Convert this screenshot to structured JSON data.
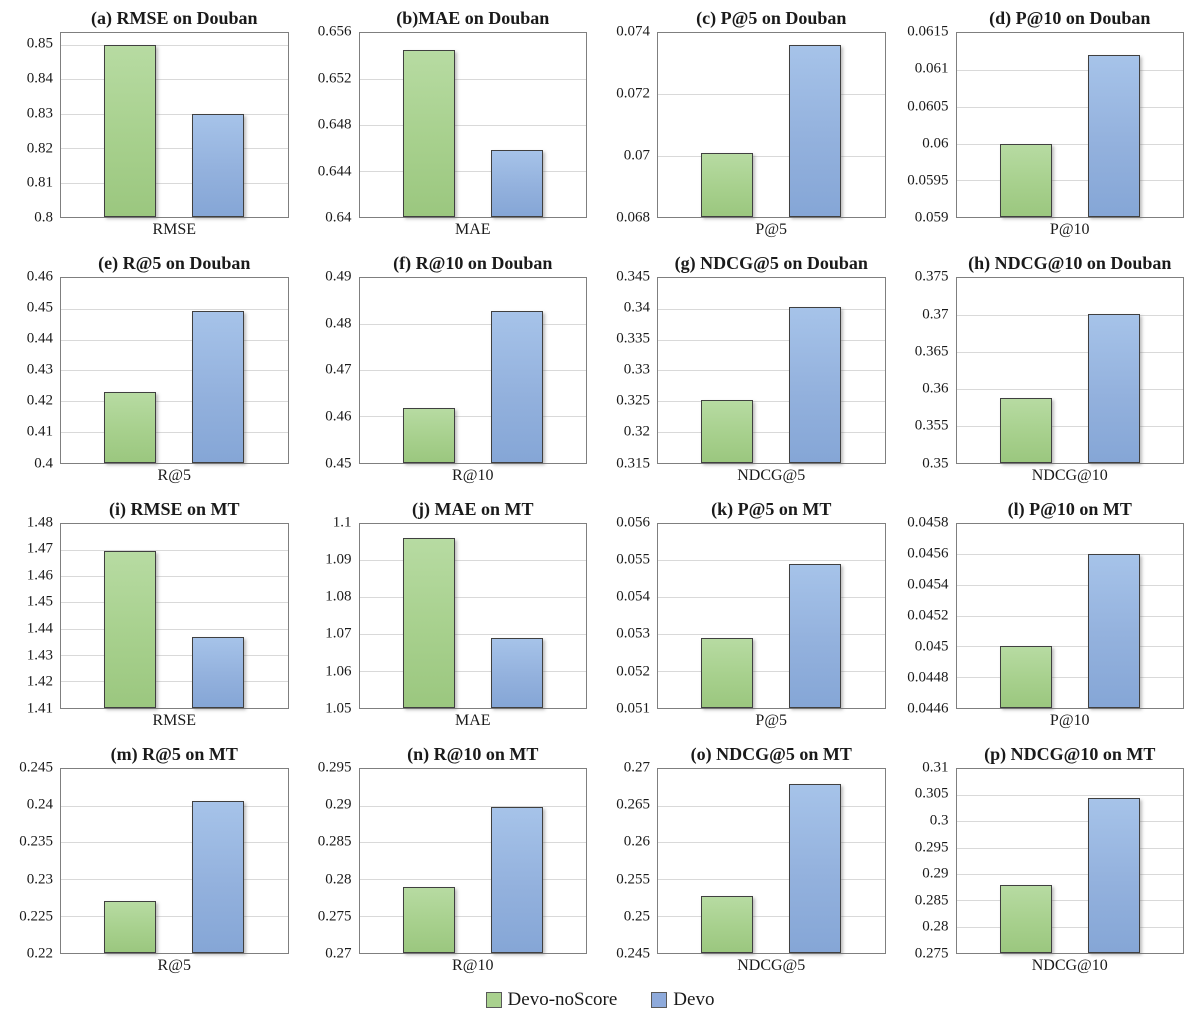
{
  "figure": {
    "kind": "4x4 grid of paired bar charts comparing two methods on Douban and MT datasets",
    "series_names": [
      "Devo-noScore",
      "Devo"
    ],
    "colors": {
      "devo_noscore_fill": "#a9d18e",
      "devo_fill": "#8eaadb",
      "bar_outline": "#404040",
      "plot_border": "#7f7f7f",
      "gridline": "#d9d9d9"
    }
  },
  "legend": {
    "items": [
      {
        "label": "Devo-noScore",
        "color": "#a9d18e"
      },
      {
        "label": "Devo",
        "color": "#8eaadb"
      }
    ],
    "position": "bottom-center"
  },
  "chart_data": [
    {
      "id": "a",
      "type": "bar",
      "title": "(a) RMSE on Douban",
      "xlabel": "RMSE",
      "categories": [
        "RMSE"
      ],
      "grid": true,
      "series": [
        {
          "name": "Devo-noScore",
          "value": 0.85
        },
        {
          "name": "Devo",
          "value": 0.83
        }
      ],
      "ylim": [
        0.8,
        0.8535
      ],
      "yticks": [
        "0.85",
        "0.84",
        "0.83",
        "0.82",
        "0.81",
        "0.8"
      ]
    },
    {
      "id": "b",
      "type": "bar",
      "title": "(b)MAE on Douban",
      "xlabel": "MAE",
      "categories": [
        "MAE"
      ],
      "grid": true,
      "series": [
        {
          "name": "Devo-noScore",
          "value": 0.6545
        },
        {
          "name": "Devo",
          "value": 0.6458
        }
      ],
      "ylim": [
        0.64,
        0.656
      ],
      "yticks": [
        "0.656",
        "0.652",
        "0.648",
        "0.644",
        "0.64"
      ]
    },
    {
      "id": "c",
      "type": "bar",
      "title": "(c) P@5 on Douban",
      "xlabel": "P@5",
      "categories": [
        "P@5"
      ],
      "grid": true,
      "series": [
        {
          "name": "Devo-noScore",
          "value": 0.0701
        },
        {
          "name": "Devo",
          "value": 0.0736
        }
      ],
      "ylim": [
        0.068,
        0.074
      ],
      "yticks": [
        "0.074",
        "0.072",
        "0.07",
        "0.068"
      ]
    },
    {
      "id": "d",
      "type": "bar",
      "title": "(d) P@10 on Douban",
      "xlabel": "P@10",
      "categories": [
        "P@10"
      ],
      "grid": true,
      "series": [
        {
          "name": "Devo-noScore",
          "value": 0.06
        },
        {
          "name": "Devo",
          "value": 0.0612
        }
      ],
      "ylim": [
        0.059,
        0.0615
      ],
      "yticks": [
        "0.0615",
        "0.061",
        "0.0605",
        "0.06",
        "0.0595",
        "0.059"
      ]
    },
    {
      "id": "e",
      "type": "bar",
      "title": "(e) R@5 on Douban",
      "xlabel": "R@5",
      "categories": [
        "R@5"
      ],
      "grid": true,
      "series": [
        {
          "name": "Devo-noScore",
          "value": 0.423
        },
        {
          "name": "Devo",
          "value": 0.4495
        }
      ],
      "ylim": [
        0.4,
        0.46
      ],
      "yticks": [
        "0.46",
        "0.45",
        "0.44",
        "0.43",
        "0.42",
        "0.41",
        "0.4"
      ]
    },
    {
      "id": "f",
      "type": "bar",
      "title": "(f) R@10 on Douban",
      "xlabel": "R@10",
      "categories": [
        "R@10"
      ],
      "grid": true,
      "series": [
        {
          "name": "Devo-noScore",
          "value": 0.4618
        },
        {
          "name": "Devo",
          "value": 0.483
        }
      ],
      "ylim": [
        0.45,
        0.49
      ],
      "yticks": [
        "0.49",
        "0.48",
        "0.47",
        "0.46",
        "0.45"
      ]
    },
    {
      "id": "g",
      "type": "bar",
      "title": "(g) NDCG@5 on Douban",
      "xlabel": "NDCG@5",
      "categories": [
        "NDCG@5"
      ],
      "grid": true,
      "series": [
        {
          "name": "Devo-noScore",
          "value": 0.3252
        },
        {
          "name": "Devo",
          "value": 0.3404
        }
      ],
      "ylim": [
        0.315,
        0.345
      ],
      "yticks": [
        "0.345",
        "0.34",
        "0.335",
        "0.33",
        "0.325",
        "0.32",
        "0.315"
      ]
    },
    {
      "id": "h",
      "type": "bar",
      "title": "(h) NDCG@10 on Douban",
      "xlabel": "NDCG@10",
      "categories": [
        "NDCG@10"
      ],
      "grid": true,
      "series": [
        {
          "name": "Devo-noScore",
          "value": 0.3587
        },
        {
          "name": "Devo",
          "value": 0.3701
        }
      ],
      "ylim": [
        0.35,
        0.375
      ],
      "yticks": [
        "0.375",
        "0.37",
        "0.365",
        "0.36",
        "0.355",
        "0.35"
      ]
    },
    {
      "id": "i",
      "type": "bar",
      "title": "(i) RMSE on MT",
      "xlabel": "RMSE",
      "categories": [
        "RMSE"
      ],
      "grid": true,
      "series": [
        {
          "name": "Devo-noScore",
          "value": 1.4695
        },
        {
          "name": "Devo",
          "value": 1.4367
        }
      ],
      "ylim": [
        1.41,
        1.48
      ],
      "yticks": [
        "1.48",
        "1.47",
        "1.46",
        "1.45",
        "1.44",
        "1.43",
        "1.42",
        "1.41"
      ]
    },
    {
      "id": "j",
      "type": "bar",
      "title": "(j) MAE on MT",
      "xlabel": "MAE",
      "categories": [
        "MAE"
      ],
      "grid": true,
      "series": [
        {
          "name": "Devo-noScore",
          "value": 1.096
        },
        {
          "name": "Devo",
          "value": 1.069
        }
      ],
      "ylim": [
        1.05,
        1.1
      ],
      "yticks": [
        "1.1",
        "1.09",
        "1.08",
        "1.07",
        "1.06",
        "1.05"
      ]
    },
    {
      "id": "k",
      "type": "bar",
      "title": "(k) P@5 on MT",
      "xlabel": "P@5",
      "categories": [
        "P@5"
      ],
      "grid": true,
      "series": [
        {
          "name": "Devo-noScore",
          "value": 0.0529
        },
        {
          "name": "Devo",
          "value": 0.0549
        }
      ],
      "ylim": [
        0.051,
        0.056
      ],
      "yticks": [
        "0.056",
        "0.055",
        "0.054",
        "0.053",
        "0.052",
        "0.051"
      ]
    },
    {
      "id": "l",
      "type": "bar",
      "title": "(l) P@10 on MT",
      "xlabel": "P@10",
      "categories": [
        "P@10"
      ],
      "grid": true,
      "series": [
        {
          "name": "Devo-noScore",
          "value": 0.045
        },
        {
          "name": "Devo",
          "value": 0.0456
        }
      ],
      "ylim": [
        0.0446,
        0.0458
      ],
      "yticks": [
        "0.0458",
        "0.0456",
        "0.0454",
        "0.0452",
        "0.045",
        "0.0448",
        "0.0446"
      ]
    },
    {
      "id": "m",
      "type": "bar",
      "title": "(m) R@5 on MT",
      "xlabel": "R@5",
      "categories": [
        "R@5"
      ],
      "grid": true,
      "series": [
        {
          "name": "Devo-noScore",
          "value": 0.227
        },
        {
          "name": "Devo",
          "value": 0.2406
        }
      ],
      "ylim": [
        0.22,
        0.245
      ],
      "yticks": [
        "0.245",
        "0.24",
        "0.235",
        "0.23",
        "0.225",
        "0.22"
      ]
    },
    {
      "id": "n",
      "type": "bar",
      "title": "(n) R@10 on MT",
      "xlabel": "R@10",
      "categories": [
        "R@10"
      ],
      "grid": true,
      "series": [
        {
          "name": "Devo-noScore",
          "value": 0.279
        },
        {
          "name": "Devo",
          "value": 0.2898
        }
      ],
      "ylim": [
        0.27,
        0.295
      ],
      "yticks": [
        "0.295",
        "0.29",
        "0.285",
        "0.28",
        "0.275",
        "0.27"
      ]
    },
    {
      "id": "o",
      "type": "bar",
      "title": "(o) NDCG@5 on MT",
      "xlabel": "NDCG@5",
      "categories": [
        "NDCG@5"
      ],
      "grid": true,
      "series": [
        {
          "name": "Devo-noScore",
          "value": 0.2528
        },
        {
          "name": "Devo",
          "value": 0.2679
        }
      ],
      "ylim": [
        0.245,
        0.27
      ],
      "yticks": [
        "0.27",
        "0.265",
        "0.26",
        "0.255",
        "0.25",
        "0.245"
      ]
    },
    {
      "id": "p",
      "type": "bar",
      "title": "(p) NDCG@10 on MT",
      "xlabel": "NDCG@10",
      "categories": [
        "NDCG@10"
      ],
      "grid": true,
      "series": [
        {
          "name": "Devo-noScore",
          "value": 0.288
        },
        {
          "name": "Devo",
          "value": 0.3045
        }
      ],
      "ylim": [
        0.275,
        0.31
      ],
      "yticks": [
        "0.31",
        "0.305",
        "0.3",
        "0.295",
        "0.29",
        "0.285",
        "0.28",
        "0.275"
      ]
    }
  ]
}
